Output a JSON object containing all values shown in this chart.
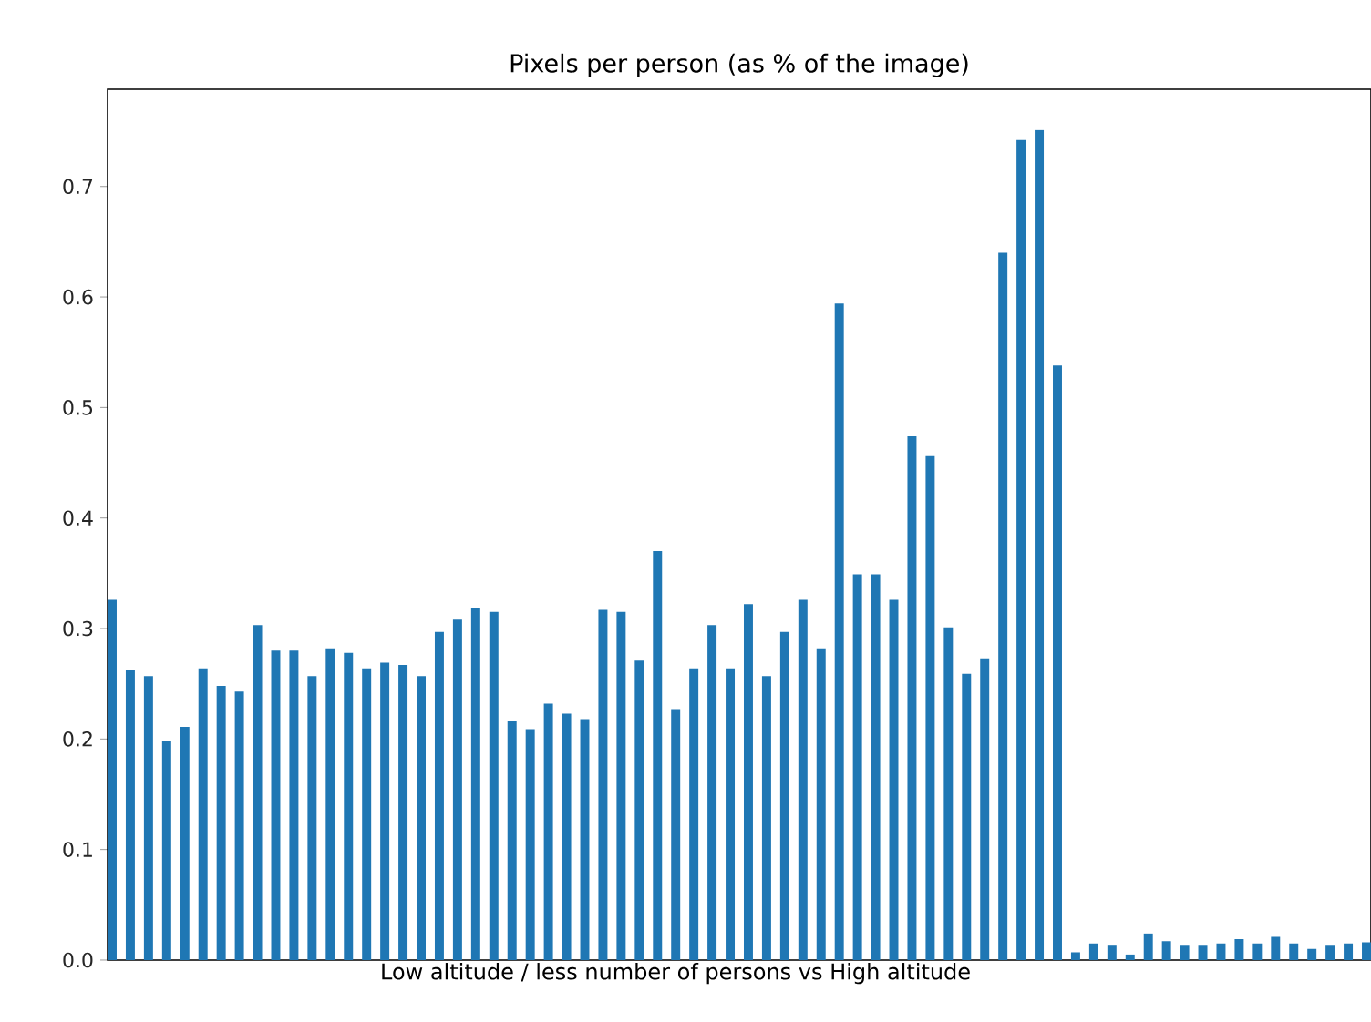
{
  "chart_data": {
    "type": "bar",
    "title": "Pixels per person (as % of the image)",
    "xlabel": "Low altitude / less number of persons      vs     High altitude",
    "categories": [
      null,
      null,
      null,
      null,
      null,
      null,
      null,
      null,
      null,
      null,
      null,
      null,
      null,
      null,
      null,
      null,
      null,
      null,
      null,
      null,
      null,
      null,
      null,
      null,
      null,
      null,
      null,
      null,
      null,
      null,
      null,
      null,
      null,
      null,
      null,
      null,
      null,
      null,
      null,
      null,
      null,
      null,
      null,
      null,
      null,
      null,
      null,
      null,
      null,
      null,
      null,
      null,
      null,
      null,
      null,
      null,
      null,
      null,
      null,
      null,
      null,
      null,
      null,
      null,
      null,
      null,
      null,
      null,
      null,
      null
    ],
    "values": [
      0.326,
      0.262,
      0.257,
      0.198,
      0.211,
      0.264,
      0.248,
      0.243,
      0.303,
      0.28,
      0.28,
      0.257,
      0.282,
      0.278,
      0.264,
      0.269,
      0.267,
      0.257,
      0.297,
      0.308,
      0.319,
      0.315,
      0.216,
      0.209,
      0.232,
      0.223,
      0.218,
      0.317,
      0.315,
      0.271,
      0.37,
      0.227,
      0.264,
      0.303,
      0.264,
      0.322,
      0.257,
      0.297,
      0.326,
      0.282,
      0.594,
      0.349,
      0.349,
      0.326,
      0.474,
      0.456,
      0.301,
      0.259,
      0.273,
      0.64,
      0.742,
      0.751,
      0.538,
      0.007,
      0.015,
      0.013,
      0.005,
      0.024,
      0.017,
      0.013,
      0.013,
      0.015,
      0.019,
      0.015,
      0.021,
      0.015,
      0.01,
      0.013,
      0.015,
      0.016
    ],
    "color": "#1f77b4",
    "ylim": [
      0,
      0.788
    ],
    "yticks": [
      {
        "value": 0,
        "label": "0.0"
      },
      0.1,
      0.2,
      0.3,
      0.4,
      0.5,
      0.6,
      0.7
    ]
  }
}
